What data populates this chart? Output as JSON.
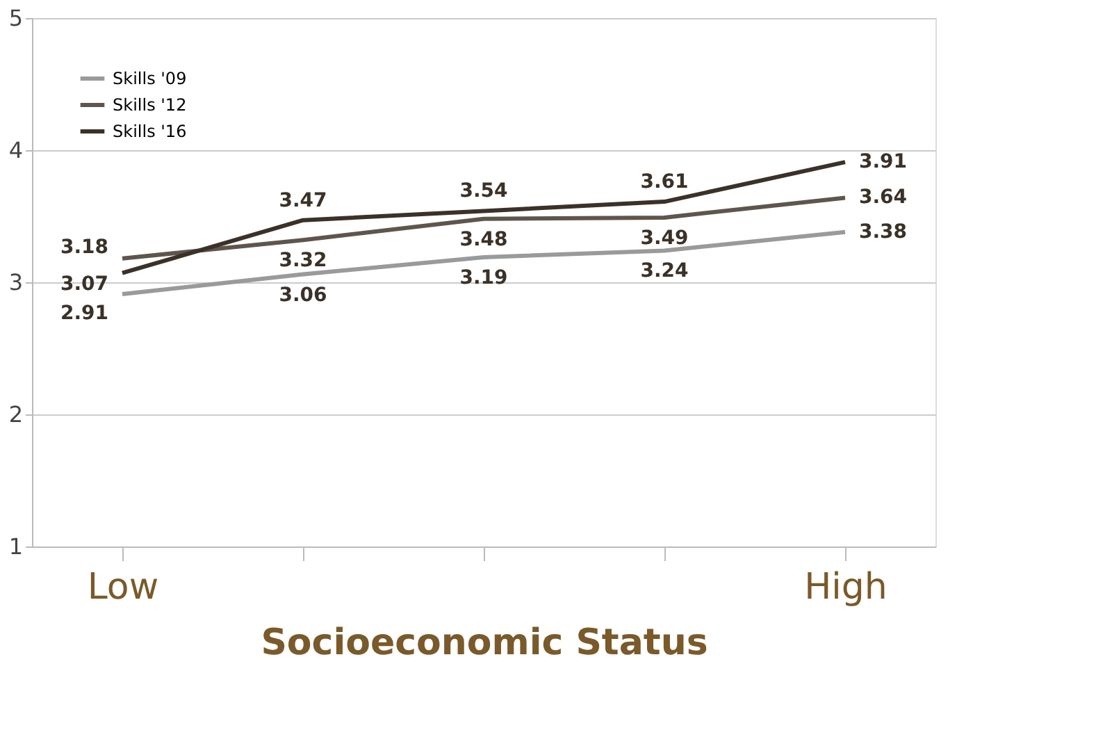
{
  "chart_data": {
    "type": "line",
    "xlabel": "Socioeconomic Status",
    "categories": [
      "Low",
      null,
      null,
      null,
      "High"
    ],
    "series": [
      {
        "name": "Skills '09",
        "color": "#9a9a9a",
        "values": [
          2.91,
          3.06,
          3.19,
          3.24,
          3.38
        ]
      },
      {
        "name": "Skills '12",
        "color": "#5e554c",
        "values": [
          3.18,
          3.32,
          3.48,
          3.49,
          3.64
        ]
      },
      {
        "name": "Skills '16",
        "color": "#3a3128",
        "values": [
          3.07,
          3.47,
          3.54,
          3.61,
          3.91
        ]
      }
    ],
    "ylim": [
      1,
      5
    ],
    "yticks": [
      1,
      2,
      3,
      4,
      5
    ],
    "grid": "y",
    "legend": "top left",
    "data_labels": true,
    "marker": "none",
    "line_style": "solid"
  }
}
